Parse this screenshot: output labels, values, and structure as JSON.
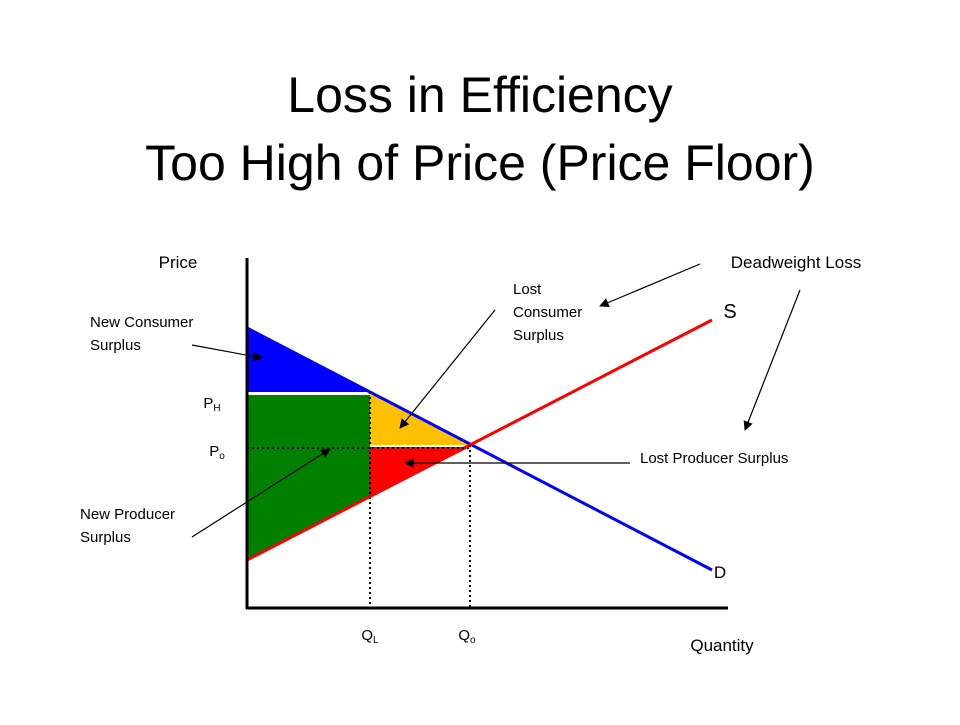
{
  "title": {
    "line1": "Loss in Efficiency",
    "line2": "Too High of Price (Price Floor)"
  },
  "axes": {
    "y_label": "Price",
    "x_label": "Quantity"
  },
  "curves": {
    "supply": "S",
    "demand": "D"
  },
  "prices": {
    "high": {
      "main": "P",
      "sub": "H"
    },
    "equilibrium": {
      "main": "P",
      "sub": "o"
    }
  },
  "quantities": {
    "low": {
      "main": "Q",
      "sub": "L"
    },
    "equilibrium": {
      "main": "Q",
      "sub": "o"
    }
  },
  "annotations": {
    "deadweight_loss": "Deadweight Loss",
    "new_consumer_surplus": [
      "New Consumer",
      "Surplus"
    ],
    "new_producer_surplus": [
      "New Producer",
      "Surplus"
    ],
    "lost_consumer_surplus": [
      "Lost",
      "Consumer",
      "Surplus"
    ],
    "lost_producer_surplus": "Lost Producer Surplus"
  }
}
